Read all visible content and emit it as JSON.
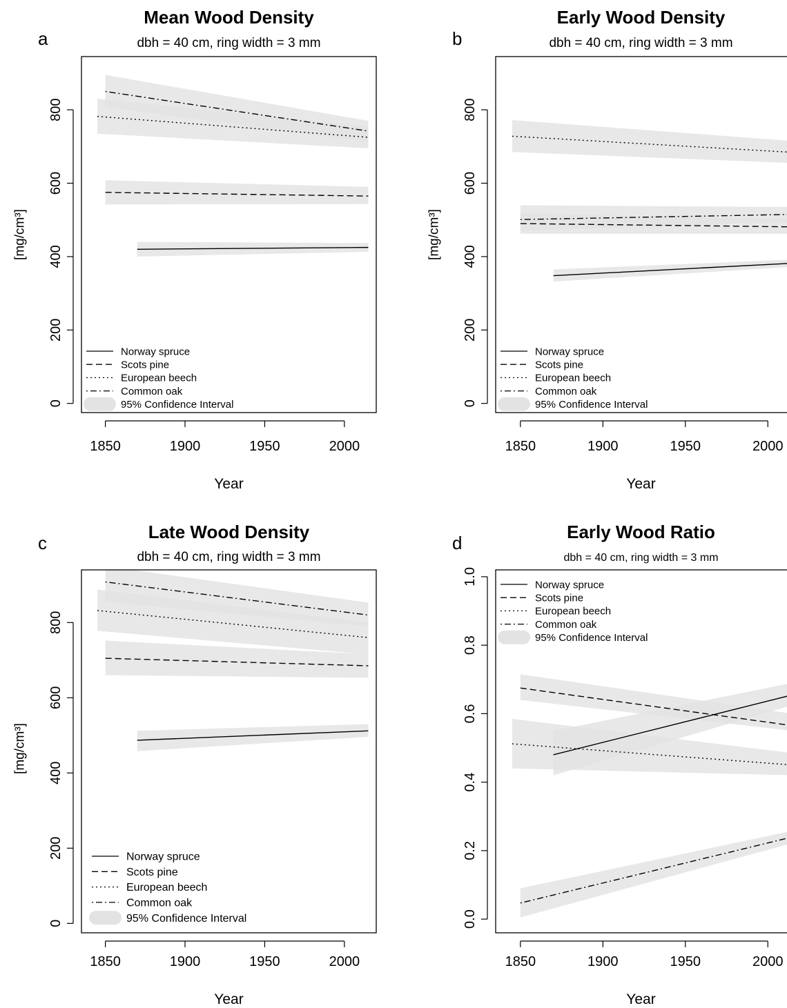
{
  "figure": {
    "subtitle": "dbh = 40 cm, ring width = 3 mm",
    "legend_ci_label": "95% Confidence Interval",
    "band_color": "#e3e3e3",
    "line_color": "#000000"
  },
  "chart_data": [
    {
      "panel": "a",
      "type": "line",
      "title": "Mean Wood Density",
      "subtitle": "dbh = 40 cm, ring width = 3 mm",
      "xlabel": "Year",
      "ylabel": "[mg/cm³]",
      "xlim": [
        1835,
        2020
      ],
      "ylim": [
        -25,
        945
      ],
      "xticks": [
        1850,
        1900,
        1950,
        2000
      ],
      "yticks": [
        0,
        200,
        400,
        600,
        800
      ],
      "legend_position": "bottom-left",
      "series": [
        {
          "name": "Norway spruce",
          "dash": "solid",
          "x": [
            1870,
            2015
          ],
          "y": [
            420,
            425
          ],
          "lower": [
            400,
            413
          ],
          "upper": [
            440,
            437
          ]
        },
        {
          "name": "Scots pine",
          "dash": "dashed",
          "x": [
            1850,
            2015
          ],
          "y": [
            575,
            565
          ],
          "lower": [
            542,
            543
          ],
          "upper": [
            608,
            590
          ]
        },
        {
          "name": "European beech",
          "dash": "dotted",
          "x": [
            1845,
            2015
          ],
          "y": [
            782,
            725
          ],
          "lower": [
            735,
            695
          ],
          "upper": [
            830,
            755
          ]
        },
        {
          "name": "Common oak",
          "dash": "dotdash",
          "x": [
            1850,
            2015
          ],
          "y": [
            850,
            742
          ],
          "lower": [
            808,
            712
          ],
          "upper": [
            895,
            770
          ]
        }
      ]
    },
    {
      "panel": "b",
      "type": "line",
      "title": "Early Wood Density",
      "subtitle": "dbh = 40 cm, ring width = 3 mm",
      "xlabel": "Year",
      "ylabel": "[mg/cm³]",
      "xlim": [
        1835,
        2020
      ],
      "ylim": [
        -25,
        945
      ],
      "xticks": [
        1850,
        1900,
        1950,
        2000
      ],
      "yticks": [
        0,
        200,
        400,
        600,
        800
      ],
      "legend_position": "bottom-left",
      "series": [
        {
          "name": "Norway spruce",
          "dash": "solid",
          "x": [
            1870,
            2015
          ],
          "y": [
            348,
            382
          ],
          "lower": [
            332,
            372
          ],
          "upper": [
            365,
            392
          ]
        },
        {
          "name": "Scots pine",
          "dash": "dashed",
          "x": [
            1850,
            2015
          ],
          "y": [
            490,
            481
          ],
          "lower": [
            462,
            462
          ],
          "upper": [
            518,
            502
          ]
        },
        {
          "name": "European beech",
          "dash": "dotted",
          "x": [
            1845,
            2015
          ],
          "y": [
            728,
            684
          ],
          "lower": [
            685,
            655
          ],
          "upper": [
            772,
            715
          ]
        },
        {
          "name": "Common oak",
          "dash": "dotdash",
          "x": [
            1850,
            2015
          ],
          "y": [
            501,
            515
          ],
          "lower": [
            470,
            495
          ],
          "upper": [
            540,
            535
          ]
        }
      ]
    },
    {
      "panel": "c",
      "type": "line",
      "title": "Late Wood Density",
      "subtitle": "dbh = 40 cm, ring width = 3 mm",
      "xlabel": "Year",
      "ylabel": "[mg/cm³]",
      "xlim": [
        1835,
        2020
      ],
      "ylim": [
        -25,
        940
      ],
      "xticks": [
        1850,
        1900,
        1950,
        2000
      ],
      "yticks": [
        0,
        200,
        400,
        600,
        800
      ],
      "legend_position": "bottom-left",
      "series": [
        {
          "name": "Norway spruce",
          "dash": "solid",
          "x": [
            1870,
            2015
          ],
          "y": [
            487,
            512
          ],
          "lower": [
            458,
            496
          ],
          "upper": [
            512,
            530
          ]
        },
        {
          "name": "Scots pine",
          "dash": "dashed",
          "x": [
            1850,
            2015
          ],
          "y": [
            705,
            685
          ],
          "lower": [
            660,
            653
          ],
          "upper": [
            752,
            716
          ]
        },
        {
          "name": "European beech",
          "dash": "dotted",
          "x": [
            1845,
            2015
          ],
          "y": [
            832,
            760
          ],
          "lower": [
            778,
            715
          ],
          "upper": [
            888,
            800
          ]
        },
        {
          "name": "Common oak",
          "dash": "dotdash",
          "x": [
            1850,
            2015
          ],
          "y": [
            908,
            820
          ],
          "lower": [
            855,
            790
          ],
          "upper": [
            950,
            853
          ]
        }
      ]
    },
    {
      "panel": "d",
      "type": "line",
      "title": "Early Wood Ratio",
      "subtitle": "dbh = 40 cm, ring width = 3 mm",
      "xlabel": "Year",
      "ylabel": "",
      "xlim": [
        1835,
        2020
      ],
      "ylim": [
        -0.04,
        1.02
      ],
      "xticks": [
        1850,
        1900,
        1950,
        2000
      ],
      "yticks": [
        0.0,
        0.2,
        0.4,
        0.6,
        0.8,
        1.0
      ],
      "ytick_labels": [
        "0.0",
        "0.2",
        "0.4",
        "0.6",
        "0.8",
        "1.0"
      ],
      "legend_position": "top-left",
      "series": [
        {
          "name": "Norway spruce",
          "dash": "solid",
          "x": [
            1870,
            2015
          ],
          "y": [
            0.48,
            0.655
          ],
          "lower": [
            0.42,
            0.625
          ],
          "upper": [
            0.55,
            0.69
          ]
        },
        {
          "name": "Scots pine",
          "dash": "dashed",
          "x": [
            1850,
            2015
          ],
          "y": [
            0.675,
            0.565
          ],
          "lower": [
            0.64,
            0.55
          ],
          "upper": [
            0.715,
            0.6
          ]
        },
        {
          "name": "European beech",
          "dash": "dotted",
          "x": [
            1845,
            2015
          ],
          "y": [
            0.512,
            0.45
          ],
          "lower": [
            0.44,
            0.42
          ],
          "upper": [
            0.585,
            0.485
          ]
        },
        {
          "name": "Common oak",
          "dash": "dotdash",
          "x": [
            1850,
            2015
          ],
          "y": [
            0.047,
            0.24
          ],
          "lower": [
            0.005,
            0.222
          ],
          "upper": [
            0.09,
            0.258
          ]
        }
      ]
    }
  ]
}
